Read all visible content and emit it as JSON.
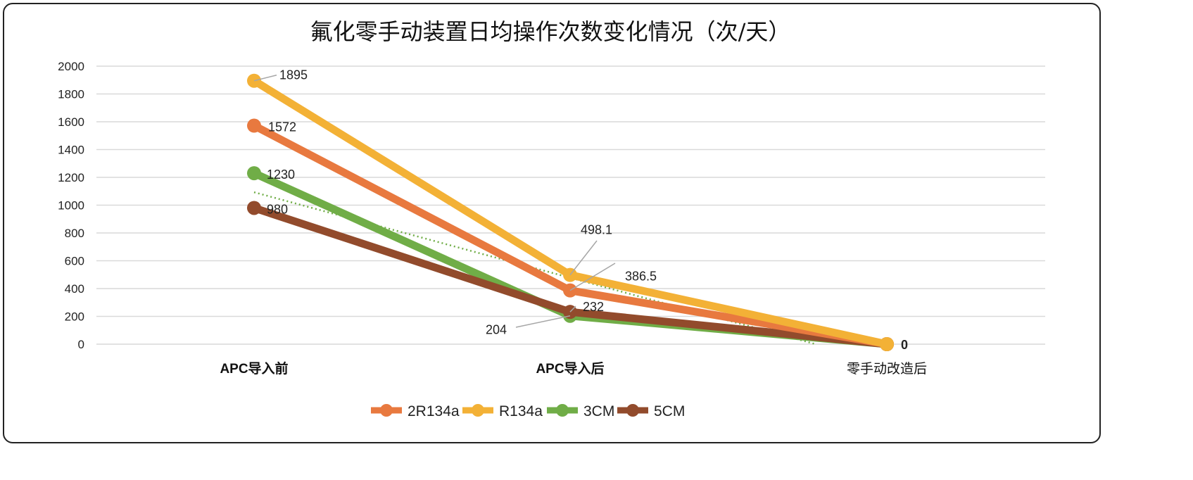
{
  "chart_data": {
    "type": "line",
    "title": "氟化零手动装置日均操作次数变化情况（次/天）",
    "categories": [
      "APC导入前",
      "APC导入后",
      "零手动改造后"
    ],
    "ylim": [
      0,
      2000
    ],
    "yticks": [
      0,
      200,
      400,
      600,
      800,
      1000,
      1200,
      1400,
      1600,
      1800,
      2000
    ],
    "grid": true,
    "legend_position": "bottom",
    "series": [
      {
        "name": "2R134a",
        "values": [
          1572,
          386.5,
          0
        ],
        "color": "#E8793F"
      },
      {
        "name": "R134a",
        "values": [
          1895,
          498.1,
          0
        ],
        "color": "#F3B136"
      },
      {
        "name": "3CM",
        "values": [
          1230,
          204,
          0
        ],
        "color": "#70AD47"
      },
      {
        "name": "5CM",
        "values": [
          980,
          232,
          0
        ],
        "color": "#924B2C"
      }
    ],
    "data_labels": [
      "1895",
      "1572",
      "1230",
      "980",
      "498.1",
      "386.5",
      "232",
      "204",
      "0"
    ],
    "trendline": {
      "type": "linear",
      "series": "3CM",
      "style": "dotted",
      "color": "#70AD47"
    }
  }
}
